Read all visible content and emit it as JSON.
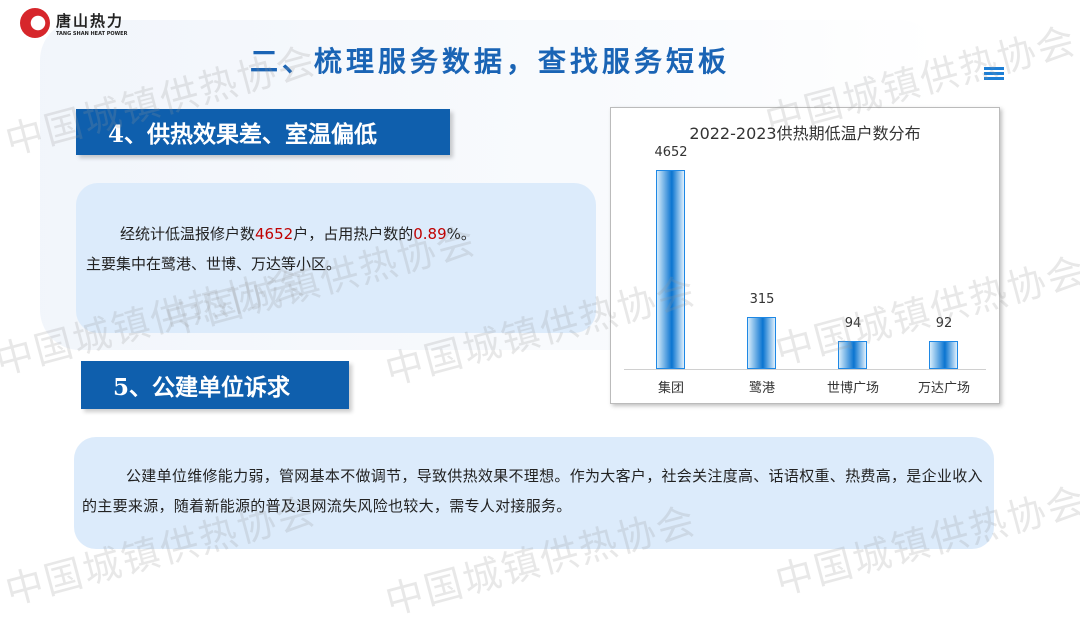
{
  "logo": {
    "cn": "唐山热力",
    "en": "TANG SHAN HEAT POWER"
  },
  "header": {
    "title": "二、梳理服务数据，查找服务短板",
    "menu_icon": "menu-icon"
  },
  "section4": {
    "heading": "4、供热效果差、室温偏低",
    "line1_pre": "经统计低温报修户数",
    "line1_num": "4652",
    "line1_mid": "户，占用热户数的",
    "line1_pct": "0.89",
    "line1_post": "%。",
    "line2": "主要集中在鹭港、世博、万达等小区。"
  },
  "section5": {
    "heading": "5、公建单位诉求",
    "text": "公建单位维修能力弱，管网基本不做调节，导致供热效果不理想。作为大客户，社会关注度高、话语权重、热费高，是企业收入的主要来源，随着新能源的普及退网流失风险也较大，需专人对接服务。"
  },
  "watermark": "中国城镇供热协会",
  "colors": {
    "accent": "#0f5fad",
    "highlight": "#c00000",
    "bar": "#0a74d0"
  },
  "chart_data": {
    "type": "bar",
    "title": "2022-2023供热期低温户数分布",
    "categories": [
      "集团",
      "鹭港",
      "世博广场",
      "万达广场"
    ],
    "values": [
      4652,
      315,
      94,
      92
    ],
    "labels": [
      "4652",
      "315",
      "94",
      "92"
    ],
    "grid": false
  }
}
